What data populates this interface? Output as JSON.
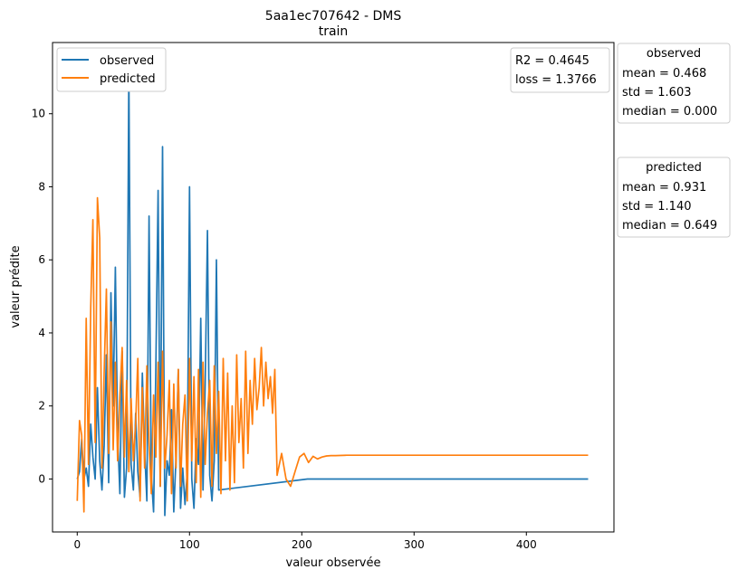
{
  "chart_data": {
    "type": "line",
    "title": "5aa1ec707642 - DMS",
    "subtitle": "train",
    "xlabel": "valeur observée",
    "ylabel": "valeur prédite",
    "xlim": [
      -22,
      478
    ],
    "ylim": [
      -1.45,
      11.95
    ],
    "xticks": [
      0,
      100,
      200,
      300,
      400
    ],
    "yticks": [
      0,
      2,
      4,
      6,
      8,
      10
    ],
    "grid": false,
    "legend_position": "top-left",
    "colors": {
      "observed": "#1f77b4",
      "predicted": "#ff7f0e"
    },
    "series": [
      {
        "name": "observed",
        "x": [
          0,
          2,
          4,
          6,
          8,
          10,
          12,
          14,
          16,
          18,
          20,
          22,
          24,
          26,
          28,
          30,
          32,
          34,
          36,
          38,
          40,
          42,
          44,
          46,
          48,
          50,
          52,
          54,
          56,
          58,
          60,
          62,
          64,
          66,
          68,
          70,
          72,
          74,
          76,
          78,
          80,
          82,
          84,
          86,
          88,
          90,
          92,
          94,
          96,
          98,
          100,
          102,
          104,
          106,
          108,
          110,
          112,
          114,
          116,
          118,
          120,
          122,
          124,
          126,
          205,
          455
        ],
        "y": [
          0.0,
          0.2,
          1.1,
          0.0,
          0.3,
          -0.2,
          1.5,
          0.6,
          0.0,
          2.5,
          0.5,
          -0.3,
          0.9,
          3.4,
          -0.1,
          5.1,
          2.0,
          5.8,
          1.2,
          -0.4,
          3.5,
          -0.5,
          0.3,
          11.2,
          0.4,
          -0.3,
          1.8,
          0.2,
          -0.5,
          2.9,
          0.8,
          -0.6,
          7.2,
          0.1,
          -0.9,
          3.0,
          7.9,
          -0.2,
          9.1,
          -1.0,
          0.5,
          0.1,
          1.9,
          -0.9,
          0.6,
          3.0,
          -0.8,
          0.3,
          -0.7,
          0.2,
          8.0,
          0.0,
          -0.8,
          1.1,
          0.4,
          4.4,
          -0.3,
          2.6,
          6.8,
          0.1,
          -0.6,
          0.5,
          6.0,
          -0.3,
          0.0,
          0.0
        ]
      },
      {
        "name": "predicted",
        "x": [
          0,
          2,
          4,
          6,
          8,
          10,
          12,
          14,
          16,
          18,
          20,
          22,
          24,
          26,
          28,
          30,
          32,
          34,
          36,
          38,
          40,
          42,
          44,
          46,
          48,
          50,
          52,
          54,
          56,
          58,
          60,
          62,
          64,
          66,
          68,
          70,
          72,
          74,
          76,
          78,
          80,
          82,
          84,
          86,
          88,
          90,
          92,
          94,
          96,
          98,
          100,
          102,
          104,
          106,
          108,
          110,
          112,
          114,
          116,
          118,
          120,
          122,
          124,
          126,
          128,
          130,
          132,
          134,
          136,
          138,
          140,
          142,
          144,
          146,
          148,
          150,
          152,
          154,
          156,
          158,
          160,
          162,
          164,
          166,
          168,
          170,
          172,
          174,
          176,
          178,
          182,
          186,
          190,
          194,
          198,
          202,
          206,
          210,
          214,
          218,
          222,
          226,
          230,
          240,
          260,
          300,
          350,
          400,
          455
        ],
        "y": [
          -0.6,
          1.6,
          1.2,
          -0.9,
          4.4,
          0.4,
          4.7,
          7.1,
          1.0,
          7.7,
          6.6,
          0.3,
          2.9,
          5.2,
          0.7,
          4.3,
          0.8,
          3.2,
          0.5,
          2.3,
          3.6,
          0.6,
          2.7,
          0.2,
          2.2,
          0.5,
          1.5,
          3.3,
          -0.6,
          2.5,
          0.3,
          3.1,
          1.0,
          -0.4,
          2.3,
          0.6,
          3.2,
          -0.2,
          3.5,
          0.3,
          1.2,
          2.7,
          -0.4,
          2.6,
          0.3,
          3.0,
          -0.2,
          1.5,
          2.3,
          -0.6,
          3.3,
          0.5,
          2.8,
          -0.1,
          3.0,
          -0.5,
          3.2,
          0.4,
          1.8,
          2.7,
          -0.2,
          3.1,
          0.7,
          2.4,
          -0.4,
          3.3,
          0.5,
          2.9,
          -0.3,
          2.0,
          -0.1,
          3.4,
          1.0,
          2.2,
          0.3,
          3.5,
          0.7,
          2.7,
          1.5,
          3.3,
          1.9,
          2.5,
          3.6,
          2.0,
          3.2,
          2.2,
          2.8,
          1.8,
          3.0,
          0.1,
          0.7,
          0.0,
          -0.2,
          0.2,
          0.6,
          0.7,
          0.45,
          0.62,
          0.55,
          0.6,
          0.63,
          0.64,
          0.64,
          0.65,
          0.65,
          0.65,
          0.65,
          0.65,
          0.65
        ]
      }
    ],
    "annotations": {
      "metrics": [
        "R2 = 0.4645",
        "loss = 1.3766"
      ],
      "observed_stats": {
        "title": "observed",
        "lines": [
          "mean = 0.468",
          "std = 1.603",
          "median = 0.000"
        ]
      },
      "predicted_stats": {
        "title": "predicted",
        "lines": [
          "mean = 0.931",
          "std = 1.140",
          "median = 0.649"
        ]
      }
    }
  }
}
